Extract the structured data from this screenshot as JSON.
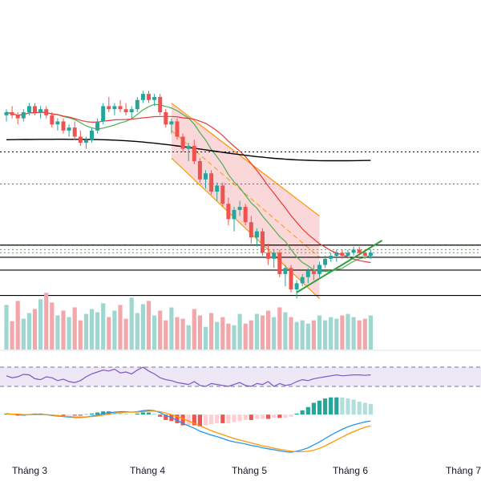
{
  "chart_data": {
    "type": "candlestick",
    "timeframe_note": "daily candles, price panel with MA/EMA, volume, RSI and MACD sub-panels",
    "x_axis_labels": [
      "Tháng 3",
      "Tháng 4",
      "Tháng 5",
      "Tháng 6",
      "Tháng 7"
    ],
    "colors": {
      "up": "#26a69a",
      "down": "#ef5350",
      "volume_up": "#9fd6cf",
      "volume_down": "#f2a8ab",
      "ma_short": "#4caf50",
      "ma_mid": "#e53935",
      "ma_long": "#000000",
      "channel_line": "#ff9800",
      "channel_fill": "#f8c9cc",
      "trendline": "#2e9e3f",
      "rsi_line": "#7e57c2",
      "rsi_band": "#ede7f6",
      "macd_line": "#2196f3",
      "signal_line": "#ff9800"
    },
    "price": {
      "ohlc": [
        [
          100,
          102,
          98,
          101
        ],
        [
          101,
          103,
          99,
          100
        ],
        [
          100,
          101,
          97,
          99
        ],
        [
          99,
          102,
          98,
          101
        ],
        [
          101,
          104,
          100,
          103
        ],
        [
          103,
          104,
          100,
          101
        ],
        [
          101,
          103,
          99,
          102
        ],
        [
          102,
          103,
          99,
          100
        ],
        [
          100,
          101,
          96,
          97
        ],
        [
          97,
          99,
          95,
          98
        ],
        [
          98,
          99,
          94,
          95
        ],
        [
          95,
          97,
          93,
          96
        ],
        [
          96,
          98,
          92,
          93
        ],
        [
          93,
          95,
          90,
          91
        ],
        [
          91,
          93,
          89,
          92
        ],
        [
          92,
          96,
          91,
          95
        ],
        [
          95,
          99,
          94,
          98
        ],
        [
          98,
          104,
          97,
          103
        ],
        [
          103,
          106,
          101,
          102
        ],
        [
          102,
          104,
          100,
          103
        ],
        [
          103,
          105,
          101,
          102
        ],
        [
          102,
          104,
          100,
          101
        ],
        [
          101,
          103,
          99,
          102
        ],
        [
          102,
          106,
          101,
          105
        ],
        [
          105,
          108,
          104,
          107
        ],
        [
          107,
          108,
          104,
          105
        ],
        [
          105,
          107,
          103,
          106
        ],
        [
          106,
          107,
          100,
          101
        ],
        [
          101,
          102,
          96,
          97
        ],
        [
          97,
          99,
          94,
          98
        ],
        [
          98,
          99,
          92,
          93
        ],
        [
          93,
          94,
          88,
          89
        ],
        [
          89,
          91,
          85,
          90
        ],
        [
          90,
          92,
          84,
          85
        ],
        [
          85,
          86,
          78,
          79
        ],
        [
          79,
          82,
          76,
          81
        ],
        [
          81,
          82,
          74,
          75
        ],
        [
          75,
          78,
          72,
          77
        ],
        [
          77,
          78,
          70,
          71
        ],
        [
          71,
          73,
          64,
          66
        ],
        [
          66,
          70,
          62,
          69
        ],
        [
          69,
          72,
          67,
          70
        ],
        [
          70,
          71,
          64,
          65
        ],
        [
          65,
          67,
          58,
          60
        ],
        [
          60,
          63,
          57,
          62
        ],
        [
          62,
          63,
          54,
          55
        ],
        [
          55,
          58,
          51,
          53
        ],
        [
          53,
          56,
          50,
          55
        ],
        [
          55,
          56,
          47,
          48
        ],
        [
          48,
          51,
          44,
          50
        ],
        [
          50,
          51,
          42,
          43
        ],
        [
          43,
          46,
          40,
          45
        ],
        [
          45,
          48,
          44,
          47
        ],
        [
          47,
          50,
          45,
          49
        ],
        [
          49,
          51,
          46,
          48
        ],
        [
          48,
          52,
          47,
          51
        ],
        [
          51,
          54,
          50,
          53
        ],
        [
          53,
          55,
          52,
          54
        ],
        [
          54,
          56,
          52,
          55
        ],
        [
          55,
          56,
          53,
          54
        ],
        [
          54,
          56,
          53,
          55
        ],
        [
          55,
          57,
          54,
          56
        ],
        [
          56,
          57,
          54,
          55
        ],
        [
          55,
          56,
          53,
          54
        ],
        [
          54,
          56,
          53,
          55
        ]
      ],
      "horizontal_levels_black": [
        57.5,
        53.5,
        49.3,
        41.0
      ],
      "horizontal_levels_dotted_black": [
        88.0
      ],
      "horizontal_levels_dotted_green": [
        56.0,
        55.0
      ],
      "horizontal_levels_dotted_red": [
        77.5
      ],
      "ylim": [
        38,
        122
      ]
    },
    "volume": {
      "values": [
        55,
        35,
        60,
        38,
        45,
        50,
        62,
        70,
        58,
        42,
        48,
        40,
        52,
        36,
        44,
        50,
        46,
        57,
        40,
        48,
        55,
        38,
        64,
        45,
        56,
        60,
        42,
        48,
        36,
        52,
        40,
        38,
        30,
        50,
        42,
        28,
        45,
        34,
        40,
        32,
        30,
        44,
        32,
        36,
        44,
        42,
        48,
        40,
        52,
        46,
        40,
        34,
        36,
        32,
        36,
        42,
        36,
        40,
        38,
        42,
        44,
        40,
        36,
        38,
        42
      ],
      "ylim": [
        0,
        90
      ]
    },
    "rsi": {
      "values": [
        52,
        48,
        50,
        55,
        54,
        46,
        44,
        50,
        48,
        42,
        45,
        40,
        38,
        42,
        50,
        56,
        60,
        64,
        62,
        66,
        58,
        60,
        56,
        64,
        70,
        62,
        56,
        48,
        44,
        42,
        38,
        36,
        34,
        40,
        32,
        30,
        36,
        34,
        32,
        30,
        34,
        38,
        32,
        30,
        36,
        34,
        40,
        30,
        36,
        32,
        34,
        40,
        44,
        42,
        46,
        48,
        50,
        52,
        54,
        52,
        53,
        54,
        54,
        53,
        54
      ],
      "ylim": [
        0,
        100
      ],
      "band": [
        30,
        70
      ]
    },
    "macd": {
      "macd_line": [
        0.2,
        0.1,
        0.0,
        -0.1,
        0.0,
        0.1,
        0.1,
        0.0,
        -0.2,
        -0.3,
        -0.4,
        -0.5,
        -0.6,
        -0.6,
        -0.5,
        -0.3,
        -0.1,
        0.2,
        0.4,
        0.5,
        0.6,
        0.6,
        0.5,
        0.6,
        0.8,
        0.9,
        0.8,
        0.4,
        -0.2,
        -0.6,
        -1.2,
        -1.8,
        -2.3,
        -2.8,
        -3.4,
        -3.8,
        -4.2,
        -4.5,
        -4.9,
        -5.3,
        -5.6,
        -5.8,
        -6.0,
        -6.3,
        -6.5,
        -6.8,
        -7.0,
        -7.2,
        -7.4,
        -7.6,
        -7.7,
        -7.5,
        -7.2,
        -6.8,
        -6.2,
        -5.6,
        -4.9,
        -4.2,
        -3.6,
        -3.0,
        -2.5,
        -2.1,
        -1.8,
        -1.5,
        -1.3
      ],
      "signal_line": [
        0.1,
        0.1,
        0.1,
        0.0,
        0.0,
        0.0,
        0.0,
        0.0,
        -0.1,
        -0.2,
        -0.3,
        -0.4,
        -0.5,
        -0.5,
        -0.5,
        -0.4,
        -0.3,
        -0.1,
        0.1,
        0.3,
        0.4,
        0.5,
        0.5,
        0.5,
        0.6,
        0.7,
        0.7,
        0.6,
        0.3,
        0.0,
        -0.4,
        -0.8,
        -1.3,
        -1.8,
        -2.3,
        -2.8,
        -3.3,
        -3.7,
        -4.1,
        -4.5,
        -4.9,
        -5.2,
        -5.5,
        -5.8,
        -6.1,
        -6.4,
        -6.6,
        -6.9,
        -7.1,
        -7.3,
        -7.5,
        -7.6,
        -7.6,
        -7.5,
        -7.3,
        -6.9,
        -6.4,
        -5.8,
        -5.2,
        -4.6,
        -4.0,
        -3.5,
        -3.0,
        -2.6,
        -2.3
      ],
      "ylim": [
        -9,
        2
      ]
    }
  }
}
